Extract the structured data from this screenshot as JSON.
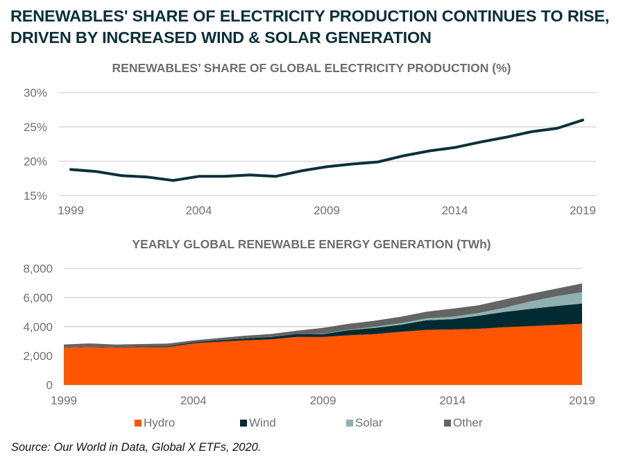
{
  "headline": "RENEWABLES' SHARE OF ELECTRICITY PRODUCTION CONTINUES TO RISE, DRIVEN BY INCREASED WIND & SOLAR GENERATION",
  "source": "Source: Our World in Data, Global X ETFs, 2020.",
  "colors": {
    "headline": "#0b3038",
    "line": "#0b3038",
    "grid": "#d9d9d9",
    "hydro": "#ff5500",
    "wind": "#002b33",
    "solar": "#8fb1af",
    "other": "#646464"
  },
  "chart_data": [
    {
      "type": "line",
      "title": "RENEWABLES’ SHARE OF GLOBAL ELECTRICITY PRODUCTION (%)",
      "xlabel": "",
      "ylabel": "",
      "x": [
        1999,
        2000,
        2001,
        2002,
        2003,
        2004,
        2005,
        2006,
        2007,
        2008,
        2009,
        2010,
        2011,
        2012,
        2013,
        2014,
        2015,
        2016,
        2017,
        2018,
        2019
      ],
      "series": [
        {
          "name": "Renewables share",
          "values": [
            18.8,
            18.5,
            17.9,
            17.7,
            17.2,
            17.8,
            17.8,
            18.0,
            17.8,
            18.6,
            19.2,
            19.6,
            19.9,
            20.8,
            21.5,
            22.0,
            22.8,
            23.5,
            24.3,
            24.8,
            26.0
          ]
        }
      ],
      "ylim": [
        15,
        30
      ],
      "yticks": [
        15,
        20,
        25,
        30
      ],
      "ytick_labels": [
        "15%",
        "20%",
        "25%",
        "30%"
      ],
      "xticks": [
        1999,
        2004,
        2009,
        2014,
        2019
      ],
      "xtick_labels": [
        "1999",
        "2004",
        "2009",
        "2014",
        "2019"
      ],
      "grid": true,
      "legend": "none"
    },
    {
      "type": "area",
      "stacked": true,
      "title": "YEARLY GLOBAL RENEWABLE ENERGY GENERATION (TWh)",
      "xlabel": "",
      "ylabel": "",
      "x": [
        1999,
        2000,
        2001,
        2002,
        2003,
        2004,
        2005,
        2006,
        2007,
        2008,
        2009,
        2010,
        2011,
        2012,
        2013,
        2014,
        2015,
        2016,
        2017,
        2018,
        2019
      ],
      "series": [
        {
          "name": "Hydro",
          "values": [
            2570,
            2610,
            2570,
            2600,
            2590,
            2850,
            2970,
            3060,
            3130,
            3300,
            3290,
            3410,
            3490,
            3650,
            3780,
            3810,
            3850,
            3960,
            4040,
            4120,
            4200
          ]
        },
        {
          "name": "Wind",
          "values": [
            10,
            30,
            30,
            50,
            60,
            80,
            100,
            130,
            170,
            210,
            200,
            350,
            430,
            480,
            660,
            710,
            900,
            1050,
            1180,
            1300,
            1390
          ]
        },
        {
          "name": "Solar",
          "values": [
            0,
            0,
            0,
            0,
            0,
            0,
            0,
            0,
            10,
            10,
            20,
            30,
            80,
            110,
            130,
            160,
            190,
            290,
            510,
            670,
            780
          ]
        },
        {
          "name": "Other",
          "values": [
            190,
            210,
            170,
            160,
            190,
            130,
            150,
            190,
            190,
            210,
            410,
            410,
            410,
            440,
            460,
            560,
            520,
            560,
            520,
            520,
            600
          ]
        }
      ],
      "ylim": [
        0,
        8000
      ],
      "yticks": [
        0,
        2000,
        4000,
        6000,
        8000
      ],
      "ytick_labels": [
        "0",
        "2,000",
        "4,000",
        "6,000",
        "8,000"
      ],
      "xticks": [
        1999,
        2004,
        2009,
        2014,
        2019
      ],
      "xtick_labels": [
        "1999",
        "2004",
        "2009",
        "2014",
        "2019"
      ],
      "grid": true,
      "legend": "bottom"
    }
  ]
}
